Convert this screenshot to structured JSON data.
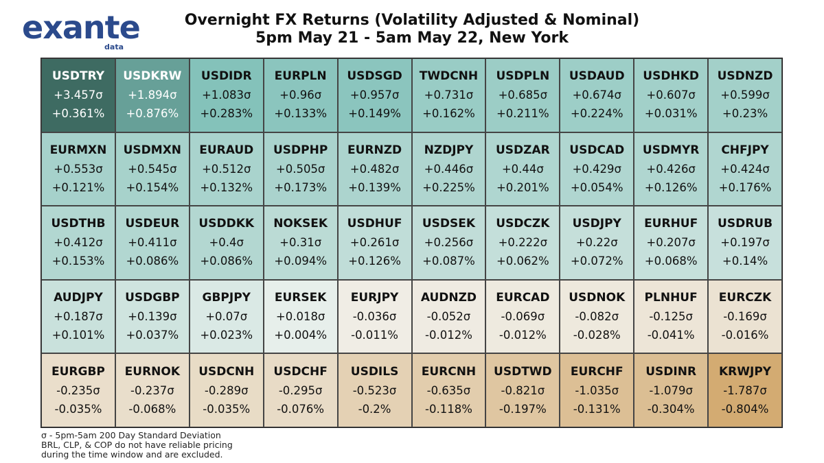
{
  "logo": {
    "word": "exante",
    "sub": "data"
  },
  "title_line1": "Overnight FX Returns (Volatility Adjusted & Nominal)",
  "title_line2": "5pm May 21 - 5am May 22, New York",
  "footnotes": [
    "σ - 5pm-5am 200 Day Standard Deviation",
    "BRL, CLP, & COP do not have reliable pricing",
    "during the time window and are excluded."
  ],
  "chart_data": {
    "type": "heatmap",
    "columns": 10,
    "rows": 5,
    "color_scale": {
      "positive_max": "#3e6b62",
      "positive_mid": "#7fc0b8",
      "neutral": "#f3f4f1",
      "negative_max": "#d3ab72"
    },
    "cells": [
      {
        "pair": "USDTRY",
        "sigma": "+3.457σ",
        "pct": "+0.361%",
        "sigma_value": 3.457,
        "pct_value": 0.361
      },
      {
        "pair": "USDKRW",
        "sigma": "+1.894σ",
        "pct": "+0.876%",
        "sigma_value": 1.894,
        "pct_value": 0.876
      },
      {
        "pair": "USDIDR",
        "sigma": "+1.083σ",
        "pct": "+0.283%",
        "sigma_value": 1.083,
        "pct_value": 0.283
      },
      {
        "pair": "EURPLN",
        "sigma": "+0.96σ",
        "pct": "+0.133%",
        "sigma_value": 0.96,
        "pct_value": 0.133
      },
      {
        "pair": "USDSGD",
        "sigma": "+0.957σ",
        "pct": "+0.149%",
        "sigma_value": 0.957,
        "pct_value": 0.149
      },
      {
        "pair": "TWDCNH",
        "sigma": "+0.731σ",
        "pct": "+0.162%",
        "sigma_value": 0.731,
        "pct_value": 0.162
      },
      {
        "pair": "USDPLN",
        "sigma": "+0.685σ",
        "pct": "+0.211%",
        "sigma_value": 0.685,
        "pct_value": 0.211
      },
      {
        "pair": "USDAUD",
        "sigma": "+0.674σ",
        "pct": "+0.224%",
        "sigma_value": 0.674,
        "pct_value": 0.224
      },
      {
        "pair": "USDHKD",
        "sigma": "+0.607σ",
        "pct": "+0.031%",
        "sigma_value": 0.607,
        "pct_value": 0.031
      },
      {
        "pair": "USDNZD",
        "sigma": "+0.599σ",
        "pct": "+0.23%",
        "sigma_value": 0.599,
        "pct_value": 0.23
      },
      {
        "pair": "EURMXN",
        "sigma": "+0.553σ",
        "pct": "+0.121%",
        "sigma_value": 0.553,
        "pct_value": 0.121
      },
      {
        "pair": "USDMXN",
        "sigma": "+0.545σ",
        "pct": "+0.154%",
        "sigma_value": 0.545,
        "pct_value": 0.154
      },
      {
        "pair": "EURAUD",
        "sigma": "+0.512σ",
        "pct": "+0.132%",
        "sigma_value": 0.512,
        "pct_value": 0.132
      },
      {
        "pair": "USDPHP",
        "sigma": "+0.505σ",
        "pct": "+0.173%",
        "sigma_value": 0.505,
        "pct_value": 0.173
      },
      {
        "pair": "EURNZD",
        "sigma": "+0.482σ",
        "pct": "+0.139%",
        "sigma_value": 0.482,
        "pct_value": 0.139
      },
      {
        "pair": "NZDJPY",
        "sigma": "+0.446σ",
        "pct": "+0.225%",
        "sigma_value": 0.446,
        "pct_value": 0.225
      },
      {
        "pair": "USDZAR",
        "sigma": "+0.44σ",
        "pct": "+0.201%",
        "sigma_value": 0.44,
        "pct_value": 0.201
      },
      {
        "pair": "USDCAD",
        "sigma": "+0.429σ",
        "pct": "+0.054%",
        "sigma_value": 0.429,
        "pct_value": 0.054
      },
      {
        "pair": "USDMYR",
        "sigma": "+0.426σ",
        "pct": "+0.126%",
        "sigma_value": 0.426,
        "pct_value": 0.126
      },
      {
        "pair": "CHFJPY",
        "sigma": "+0.424σ",
        "pct": "+0.176%",
        "sigma_value": 0.424,
        "pct_value": 0.176
      },
      {
        "pair": "USDTHB",
        "sigma": "+0.412σ",
        "pct": "+0.153%",
        "sigma_value": 0.412,
        "pct_value": 0.153
      },
      {
        "pair": "USDEUR",
        "sigma": "+0.411σ",
        "pct": "+0.086%",
        "sigma_value": 0.411,
        "pct_value": 0.086
      },
      {
        "pair": "USDDKK",
        "sigma": "+0.4σ",
        "pct": "+0.086%",
        "sigma_value": 0.4,
        "pct_value": 0.086
      },
      {
        "pair": "NOKSEK",
        "sigma": "+0.31σ",
        "pct": "+0.094%",
        "sigma_value": 0.31,
        "pct_value": 0.094
      },
      {
        "pair": "USDHUF",
        "sigma": "+0.261σ",
        "pct": "+0.126%",
        "sigma_value": 0.261,
        "pct_value": 0.126
      },
      {
        "pair": "USDSEK",
        "sigma": "+0.256σ",
        "pct": "+0.087%",
        "sigma_value": 0.256,
        "pct_value": 0.087
      },
      {
        "pair": "USDCZK",
        "sigma": "+0.222σ",
        "pct": "+0.062%",
        "sigma_value": 0.222,
        "pct_value": 0.062
      },
      {
        "pair": "USDJPY",
        "sigma": "+0.22σ",
        "pct": "+0.072%",
        "sigma_value": 0.22,
        "pct_value": 0.072
      },
      {
        "pair": "EURHUF",
        "sigma": "+0.207σ",
        "pct": "+0.068%",
        "sigma_value": 0.207,
        "pct_value": 0.068
      },
      {
        "pair": "USDRUB",
        "sigma": "+0.197σ",
        "pct": "+0.14%",
        "sigma_value": 0.197,
        "pct_value": 0.14
      },
      {
        "pair": "AUDJPY",
        "sigma": "+0.187σ",
        "pct": "+0.101%",
        "sigma_value": 0.187,
        "pct_value": 0.101
      },
      {
        "pair": "USDGBP",
        "sigma": "+0.139σ",
        "pct": "+0.037%",
        "sigma_value": 0.139,
        "pct_value": 0.037
      },
      {
        "pair": "GBPJPY",
        "sigma": "+0.07σ",
        "pct": "+0.023%",
        "sigma_value": 0.07,
        "pct_value": 0.023
      },
      {
        "pair": "EURSEK",
        "sigma": "+0.018σ",
        "pct": "+0.004%",
        "sigma_value": 0.018,
        "pct_value": 0.004
      },
      {
        "pair": "EURJPY",
        "sigma": "-0.036σ",
        "pct": "-0.011%",
        "sigma_value": -0.036,
        "pct_value": -0.011
      },
      {
        "pair": "AUDNZD",
        "sigma": "-0.052σ",
        "pct": "-0.012%",
        "sigma_value": -0.052,
        "pct_value": -0.012
      },
      {
        "pair": "EURCAD",
        "sigma": "-0.069σ",
        "pct": "-0.012%",
        "sigma_value": -0.069,
        "pct_value": -0.012
      },
      {
        "pair": "USDNOK",
        "sigma": "-0.082σ",
        "pct": "-0.028%",
        "sigma_value": -0.082,
        "pct_value": -0.028
      },
      {
        "pair": "PLNHUF",
        "sigma": "-0.125σ",
        "pct": "-0.041%",
        "sigma_value": -0.125,
        "pct_value": -0.041
      },
      {
        "pair": "EURCZK",
        "sigma": "-0.169σ",
        "pct": "-0.016%",
        "sigma_value": -0.169,
        "pct_value": -0.016
      },
      {
        "pair": "EURGBP",
        "sigma": "-0.235σ",
        "pct": "-0.035%",
        "sigma_value": -0.235,
        "pct_value": -0.035
      },
      {
        "pair": "EURNOK",
        "sigma": "-0.237σ",
        "pct": "-0.068%",
        "sigma_value": -0.237,
        "pct_value": -0.068
      },
      {
        "pair": "USDCNH",
        "sigma": "-0.289σ",
        "pct": "-0.035%",
        "sigma_value": -0.289,
        "pct_value": -0.035
      },
      {
        "pair": "USDCHF",
        "sigma": "-0.295σ",
        "pct": "-0.076%",
        "sigma_value": -0.295,
        "pct_value": -0.076
      },
      {
        "pair": "USDILS",
        "sigma": "-0.523σ",
        "pct": "-0.2%",
        "sigma_value": -0.523,
        "pct_value": -0.2
      },
      {
        "pair": "EURCNH",
        "sigma": "-0.635σ",
        "pct": "-0.118%",
        "sigma_value": -0.635,
        "pct_value": -0.118
      },
      {
        "pair": "USDTWD",
        "sigma": "-0.821σ",
        "pct": "-0.197%",
        "sigma_value": -0.821,
        "pct_value": -0.197
      },
      {
        "pair": "EURCHF",
        "sigma": "-1.035σ",
        "pct": "-0.131%",
        "sigma_value": -1.035,
        "pct_value": -0.131
      },
      {
        "pair": "USDINR",
        "sigma": "-1.079σ",
        "pct": "-0.304%",
        "sigma_value": -1.079,
        "pct_value": -0.304
      },
      {
        "pair": "KRWJPY",
        "sigma": "-1.787σ",
        "pct": "-0.804%",
        "sigma_value": -1.787,
        "pct_value": -0.804
      }
    ]
  }
}
